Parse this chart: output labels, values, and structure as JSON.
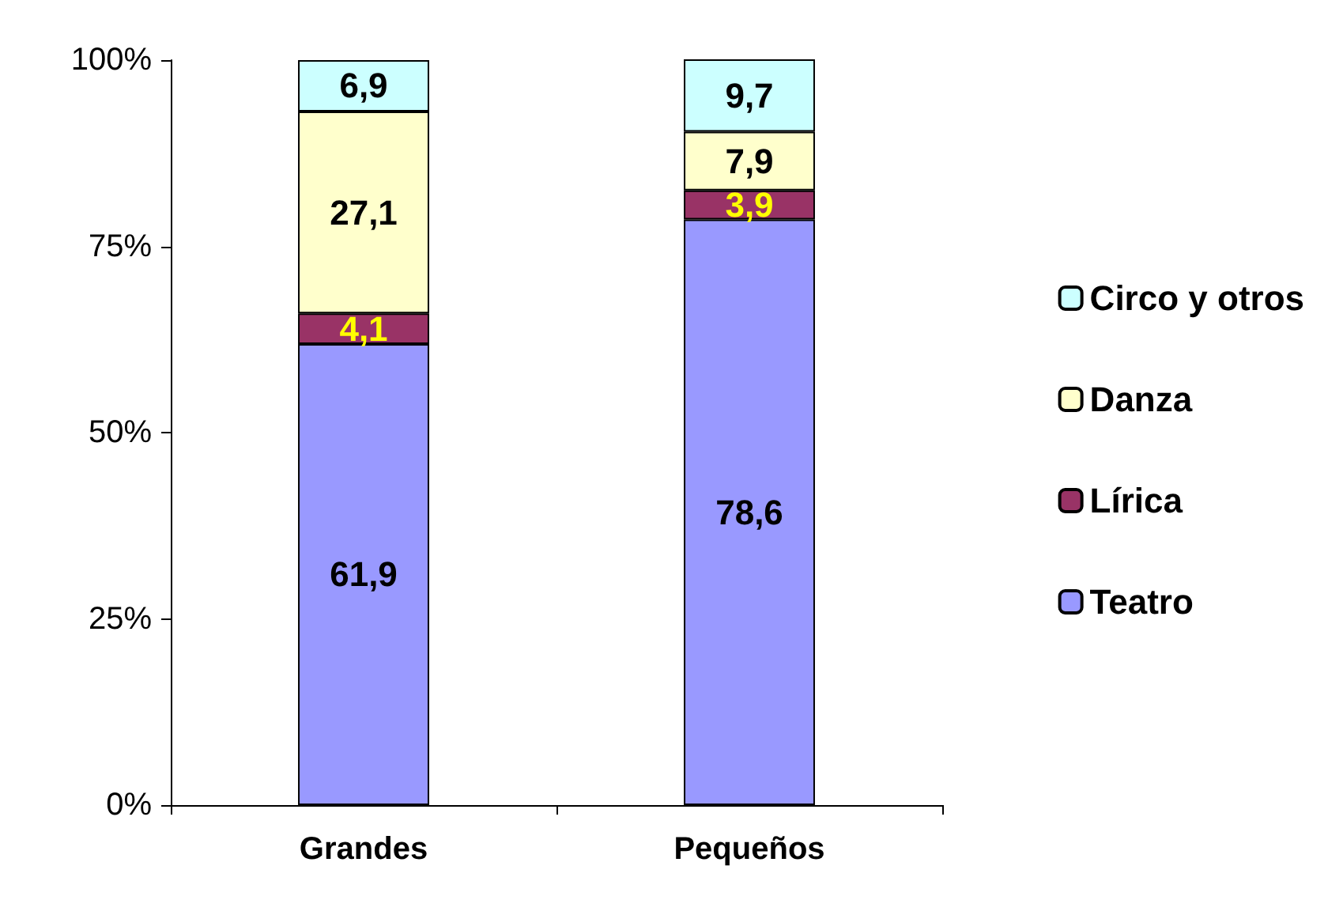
{
  "chart_data": {
    "type": "bar",
    "stacked": true,
    "categories": [
      "Grandes",
      "Pequeños"
    ],
    "series": [
      {
        "name": "Teatro",
        "color": "#9999ff",
        "values": [
          61.9,
          78.6
        ],
        "value_labels": [
          "61,9",
          "78,6"
        ]
      },
      {
        "name": "Lírica",
        "color": "#993366",
        "values": [
          4.1,
          3.9
        ],
        "value_labels": [
          "4,1",
          "3,9"
        ]
      },
      {
        "name": "Danza",
        "color": "#ffffcc",
        "values": [
          27.1,
          7.9
        ],
        "value_labels": [
          "27,1",
          "7,9"
        ]
      },
      {
        "name": "Circo y otros",
        "color": "#ccffff",
        "values": [
          6.9,
          9.7
        ],
        "value_labels": [
          "6,9",
          "9,7"
        ]
      }
    ],
    "ylim": [
      0,
      100
    ],
    "yticks": [
      {
        "value": 0,
        "label": "0%"
      },
      {
        "value": 25,
        "label": "25%"
      },
      {
        "value": 50,
        "label": "50%"
      },
      {
        "value": 75,
        "label": "75%"
      },
      {
        "value": 100,
        "label": "100%"
      }
    ],
    "grid": false,
    "legend": "right"
  }
}
